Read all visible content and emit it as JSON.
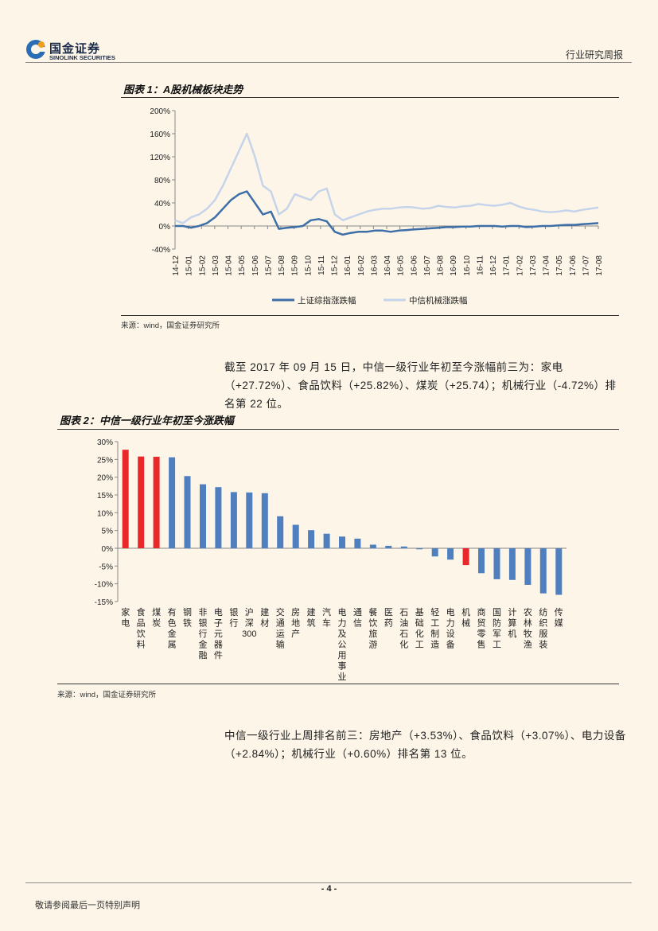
{
  "header": {
    "logo_cn": "国金证券",
    "logo_en": "SINOLINK SECURITIES",
    "report_type": "行业研究周报"
  },
  "figure1": {
    "title": "图表 1：A股机械板块走势",
    "source": "来源：wind，国金证券研究所"
  },
  "paragraph1": "截至 2017 年 09 月 15 日，中信一级行业年初至今涨幅前三为：家电（+27.72%）、食品饮料（+25.82%）、煤炭（+25.74）；机械行业（-4.72%）排名第 22 位。",
  "figure2": {
    "title": "图表 2：中信一级行业年初至今涨跌幅",
    "source": "来源：wind，国金证券研究所"
  },
  "paragraph2": "中信一级行业上周排名前三：房地产（+3.53%）、食品饮料（+3.07%）、电力设备（+2.84%）；机械行业（+0.60%）排名第 13 位。",
  "footer": {
    "page": "- 4 -",
    "disclaimer": "敬请参阅最后一页特别声明"
  },
  "chart_data": [
    {
      "type": "line",
      "x_ticks": [
        "14-12",
        "15-01",
        "15-02",
        "15-03",
        "15-04",
        "15-05",
        "15-06",
        "15-07",
        "15-08",
        "15-09",
        "15-10",
        "15-11",
        "15-12",
        "16-01",
        "16-02",
        "16-03",
        "16-04",
        "16-05",
        "16-06",
        "16-07",
        "16-08",
        "16-09",
        "16-10",
        "16-11",
        "16-12",
        "17-01",
        "17-02",
        "17-03",
        "17-04",
        "17-05",
        "17-06",
        "17-07",
        "17-08"
      ],
      "ylim": [
        -40,
        200
      ],
      "y_ticks": [
        "-40%",
        "0%",
        "40%",
        "80%",
        "120%",
        "160%",
        "200%"
      ],
      "series": [
        {
          "name": "上证综指涨跌幅",
          "color": "#3d6ea8",
          "values": [
            0,
            0,
            -3,
            0,
            5,
            15,
            30,
            45,
            55,
            60,
            40,
            20,
            25,
            -5,
            -3,
            -2,
            0,
            10,
            12,
            8,
            -10,
            -15,
            -12,
            -10,
            -10,
            -8,
            -8,
            -10,
            -8,
            -7,
            -6,
            -5,
            -4,
            -3,
            -2,
            -2,
            -1,
            -1,
            0,
            0,
            0,
            -1,
            0,
            0,
            -2,
            -1,
            0,
            0,
            1,
            2,
            2,
            3,
            4,
            5
          ]
        },
        {
          "name": "中信机械涨跌幅",
          "color": "#c5d4ea",
          "values": [
            10,
            5,
            15,
            20,
            30,
            45,
            70,
            100,
            130,
            160,
            120,
            70,
            60,
            20,
            30,
            55,
            50,
            45,
            60,
            65,
            20,
            10,
            15,
            20,
            25,
            28,
            30,
            30,
            32,
            33,
            32,
            30,
            31,
            35,
            33,
            32,
            34,
            35,
            38,
            36,
            35,
            37,
            40,
            34,
            30,
            28,
            25,
            24,
            25,
            27,
            25,
            28,
            30,
            32
          ]
        }
      ]
    },
    {
      "type": "bar",
      "categories": [
        "家电",
        "食品饮料",
        "煤炭",
        "有色金属",
        "钢铁",
        "非银行金融",
        "电子元器件",
        "银行",
        "沪深300",
        "建材",
        "交通运输",
        "房地产",
        "建筑",
        "汽车",
        "电力及公用事业",
        "通信",
        "餐饮旅游",
        "医药",
        "石油石化",
        "基础化工",
        "轻工制造",
        "电力设备",
        "机械",
        "商贸零售",
        "国防军工",
        "计算机",
        "农林牧渔",
        "纺织服装",
        "传媒"
      ],
      "values": [
        27.72,
        25.82,
        25.74,
        25.6,
        20.3,
        18.0,
        17.2,
        15.8,
        15.7,
        15.5,
        9.0,
        6.6,
        5.1,
        4.1,
        3.3,
        2.7,
        1.0,
        0.7,
        0.5,
        -0.3,
        -2.3,
        -3.2,
        -4.72,
        -7.0,
        -8.7,
        -8.9,
        -10.3,
        -12.7,
        -13.1
      ],
      "highlight": {
        "家电": "#e8282a",
        "食品饮料": "#e8282a",
        "煤炭": "#e8282a",
        "机械": "#e8282a"
      },
      "default_color": "#4f7fbf",
      "ylim": [
        -15,
        30
      ],
      "y_ticks": [
        "-15%",
        "-10%",
        "-5%",
        "0%",
        "5%",
        "10%",
        "15%",
        "20%",
        "25%",
        "30%"
      ]
    }
  ]
}
